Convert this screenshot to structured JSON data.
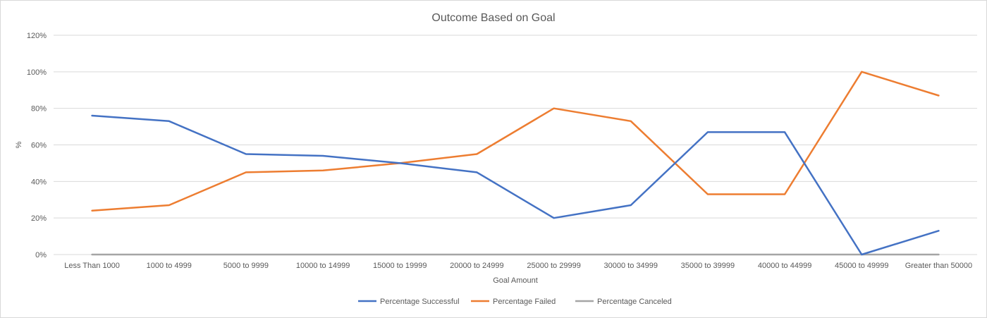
{
  "chart_data": {
    "type": "line",
    "title": "Outcome Based on Goal",
    "xlabel": "Goal Amount",
    "ylabel": "%",
    "ylim": [
      0,
      120
    ],
    "y_ticks": [
      "0%",
      "20%",
      "40%",
      "60%",
      "80%",
      "100%",
      "120%"
    ],
    "y_tick_values": [
      0,
      20,
      40,
      60,
      80,
      100,
      120
    ],
    "grid": true,
    "legend_position": "bottom",
    "categories": [
      "Less Than 1000",
      "1000 to 4999",
      "5000 to 9999",
      "10000 to 14999",
      "15000 to 19999",
      "20000 to 24999",
      "25000 to 29999",
      "30000 to 34999",
      "35000 to 39999",
      "40000 to 44999",
      "45000 to 49999",
      "Greater than 50000"
    ],
    "series": [
      {
        "name": "Percentage Successful",
        "color": "#4472c4",
        "values": [
          76,
          73,
          55,
          54,
          50,
          45,
          20,
          27,
          67,
          67,
          0,
          13
        ]
      },
      {
        "name": "Percentage Failed",
        "color": "#ed7d31",
        "values": [
          24,
          27,
          45,
          46,
          50,
          55,
          80,
          73,
          33,
          33,
          100,
          87
        ]
      },
      {
        "name": "Percentage Canceled",
        "color": "#a5a5a5",
        "values": [
          0,
          0,
          0,
          0,
          0,
          0,
          0,
          0,
          0,
          0,
          0,
          0
        ]
      }
    ]
  }
}
